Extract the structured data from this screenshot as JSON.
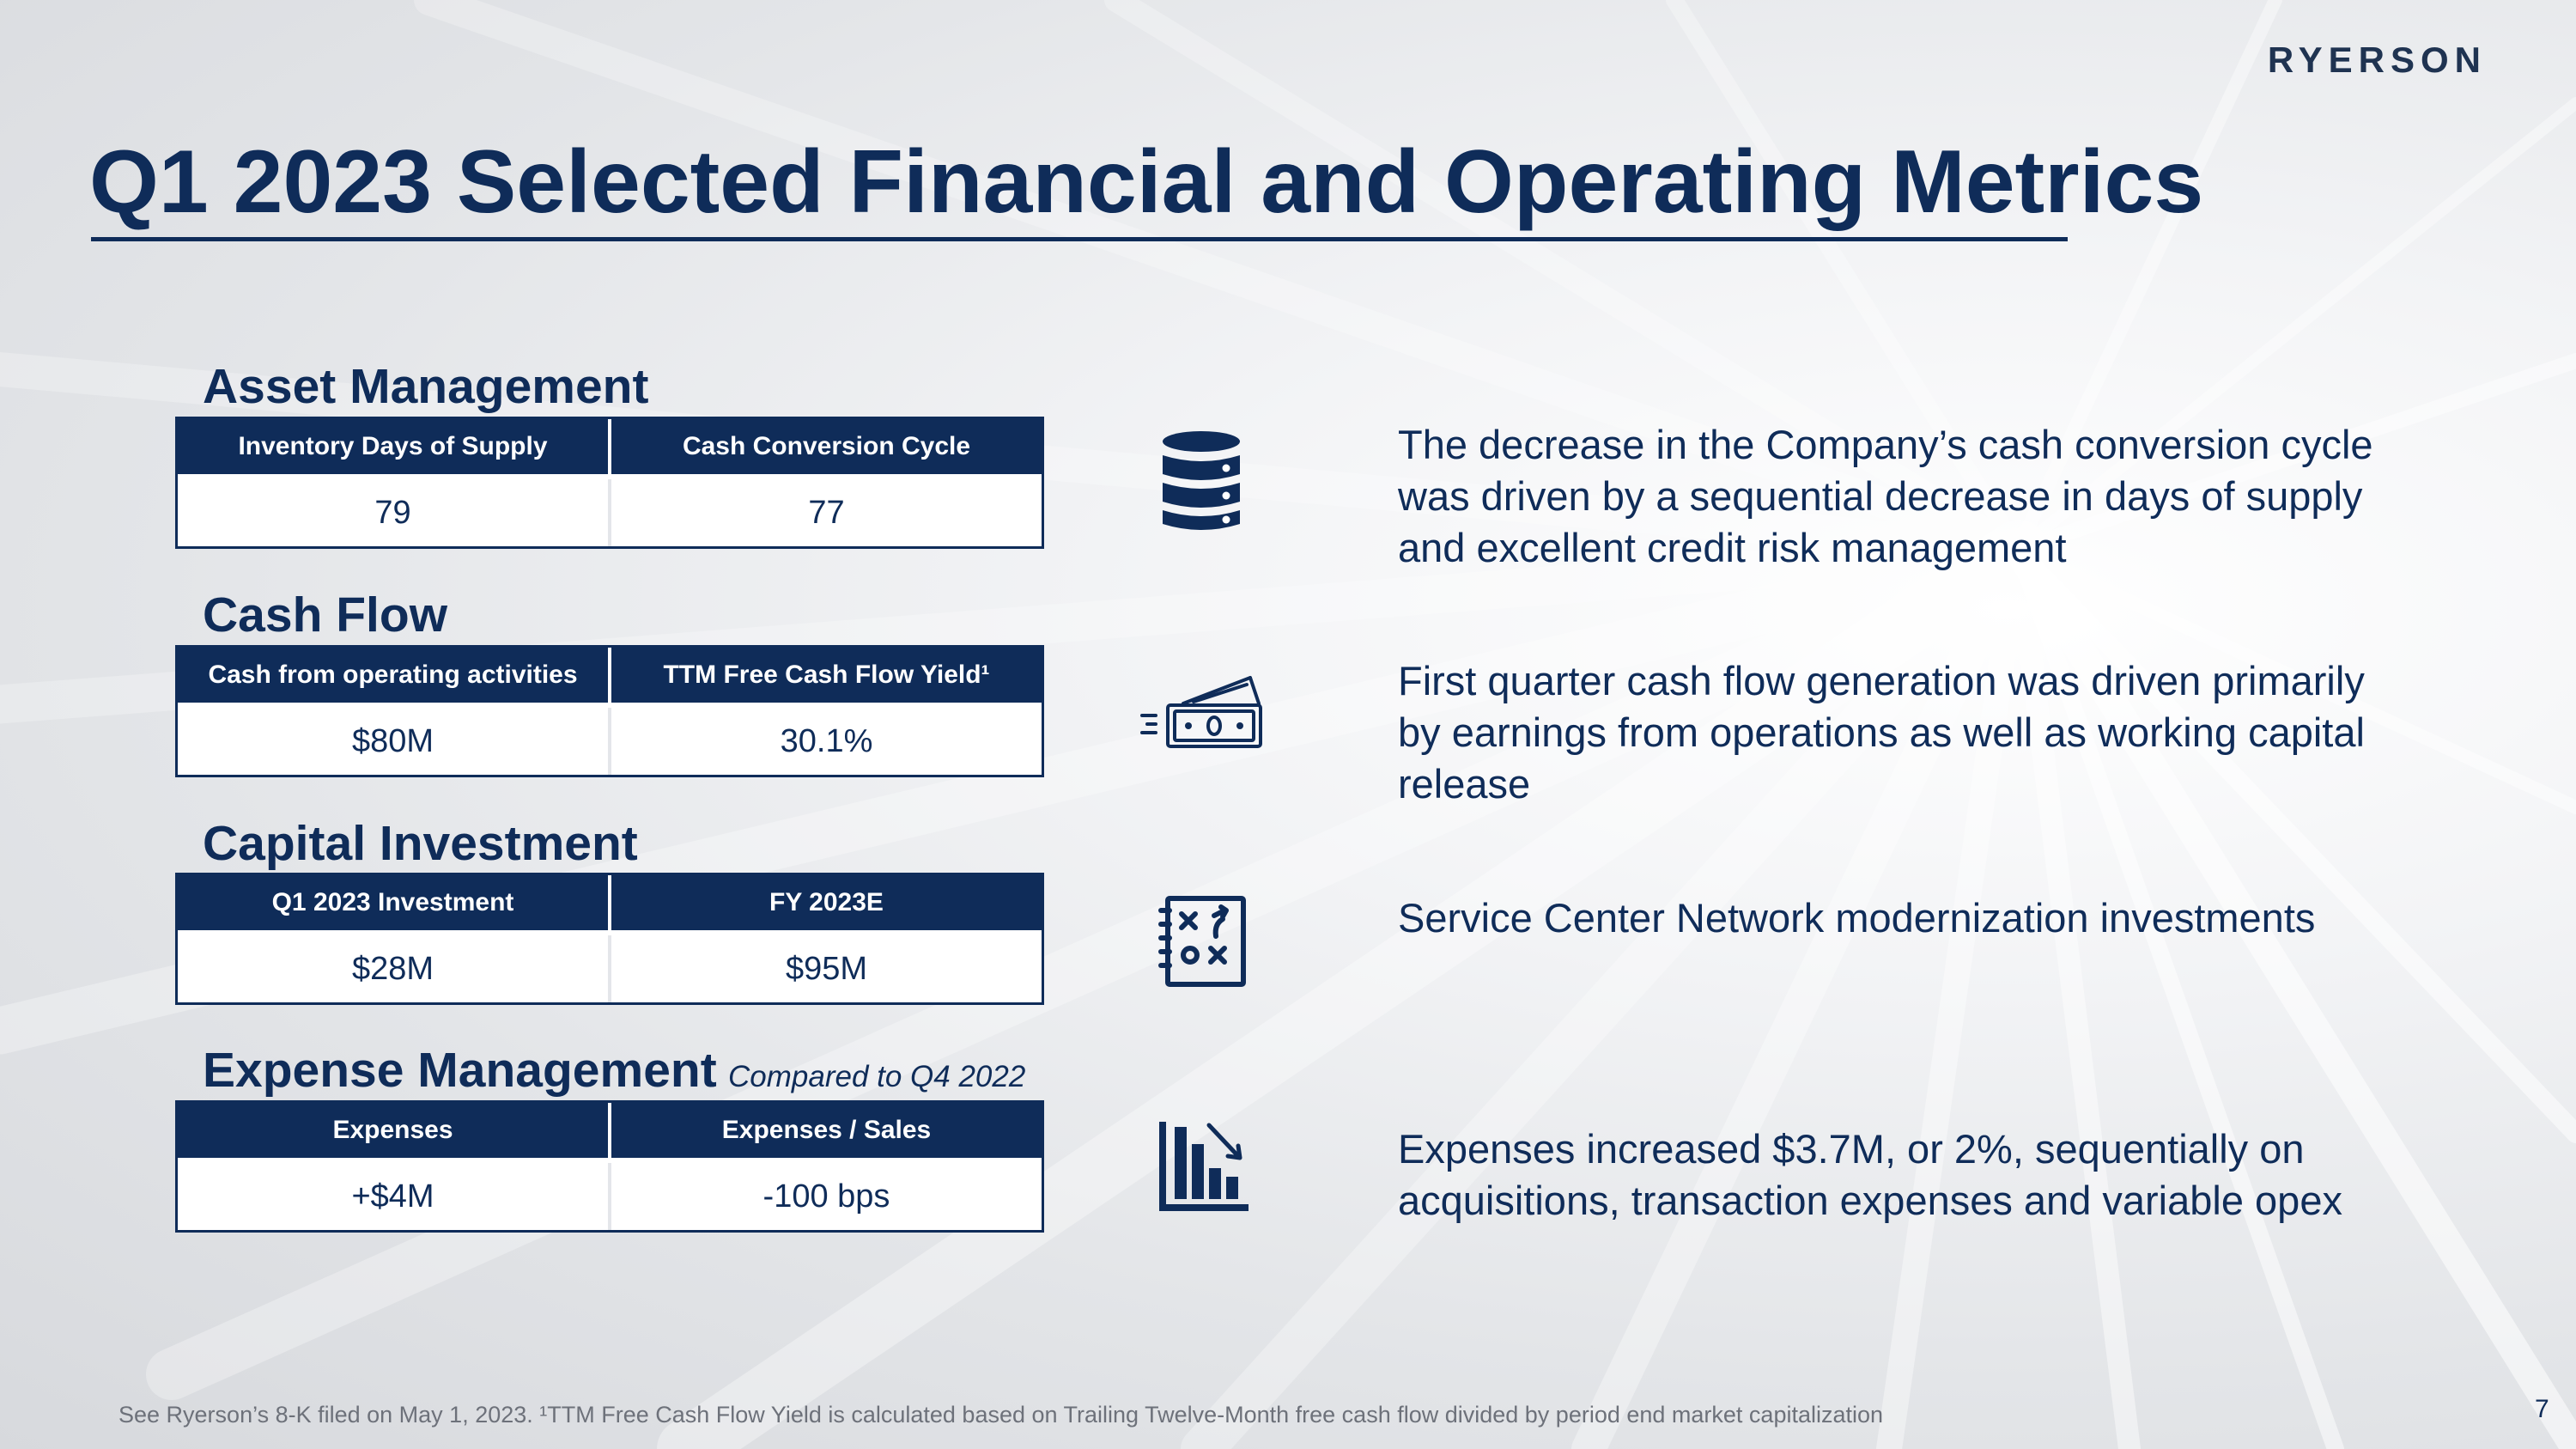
{
  "header": {
    "logo": "RYERSON",
    "title": "Q1 2023 Selected Financial and Operating Metrics"
  },
  "sections": [
    {
      "heading": "Asset Management",
      "headers": [
        "Inventory Days of Supply",
        "Cash Conversion Cycle"
      ],
      "values": [
        "79",
        "77"
      ],
      "icon": "database-icon",
      "note": "The decrease in the Company’s cash conversion cycle was driven by a sequential decrease in days of supply and excellent credit risk management"
    },
    {
      "heading": "Cash Flow",
      "headers": [
        "Cash from operating activities",
        "TTM Free Cash Flow Yield¹"
      ],
      "values": [
        "$80M",
        "30.1%"
      ],
      "icon": "cash-flow-icon",
      "note": "First quarter cash flow generation was driven primarily by earnings from operations as well as working capital release"
    },
    {
      "heading": "Capital Investment",
      "headers": [
        "Q1 2023 Investment",
        "FY 2023E"
      ],
      "values": [
        "$28M",
        "$95M"
      ],
      "icon": "strategy-board-icon",
      "note": "Service Center Network modernization investments"
    },
    {
      "heading": "Expense Management",
      "subheading": "Compared to Q4 2022",
      "headers": [
        "Expenses",
        "Expenses / Sales"
      ],
      "values": [
        "+$4M",
        "-100 bps"
      ],
      "icon": "declining-bar-chart-icon",
      "note": "Expenses increased $3.7M, or 2%, sequentially on acquisitions, transaction expenses and variable opex"
    }
  ],
  "footer": {
    "footnote": "See Ryerson’s 8-K filed on May 1, 2023. ¹TTM Free Cash Flow Yield is calculated based on Trailing Twelve-Month free cash flow divided by period end market capitalization",
    "page_number": "7"
  },
  "colors": {
    "navy": "#0f2c59",
    "logo": "#1f3351",
    "footnote_gray": "#6d717a"
  }
}
